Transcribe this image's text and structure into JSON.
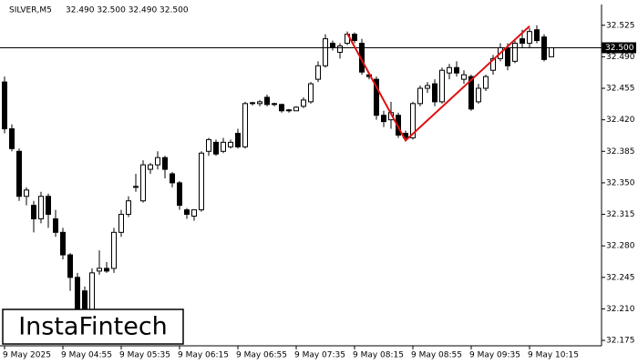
{
  "chart_data": {
    "type": "candlestick",
    "symbol": "SILVER,M5",
    "ohlc_text": "32.490 32.500 32.490 32.500",
    "watermark": "InstaFintech",
    "up_color": "#ffffff",
    "down_color": "#000000",
    "categories": [
      "9 May 2025",
      null,
      null,
      null,
      null,
      null,
      null,
      null,
      "9 May 04:55",
      null,
      null,
      null,
      null,
      null,
      null,
      null,
      "9 May 05:35",
      null,
      null,
      null,
      null,
      null,
      null,
      null,
      "9 May 06:15",
      null,
      null,
      null,
      null,
      null,
      null,
      null,
      "9 May 06:55",
      null,
      null,
      null,
      null,
      null,
      null,
      null,
      "9 May 07:35",
      null,
      null,
      null,
      null,
      null,
      null,
      null,
      "9 May 08:15",
      null,
      null,
      null,
      null,
      null,
      null,
      null,
      "9 May 08:55",
      null,
      null,
      null,
      null,
      null,
      null,
      null,
      "9 May 09:35",
      null,
      null,
      null,
      null,
      null,
      null,
      null,
      "9 May 10:15",
      null,
      null,
      null
    ],
    "open": [
      32.462,
      32.41,
      32.385,
      32.335,
      32.325,
      32.31,
      32.335,
      32.31,
      32.295,
      32.27,
      32.245,
      32.23,
      32.205,
      32.252,
      32.255,
      32.255,
      32.295,
      32.315,
      32.345,
      32.33,
      32.365,
      32.37,
      32.378,
      32.36,
      32.35,
      32.32,
      32.313,
      32.32,
      32.385,
      32.395,
      32.385,
      32.39,
      32.405,
      32.39,
      32.438,
      32.438,
      32.445,
      32.437,
      32.437,
      32.43,
      32.43,
      32.435,
      32.44,
      32.465,
      32.48,
      32.505,
      32.495,
      32.505,
      32.515,
      32.505,
      32.47,
      32.465,
      32.425,
      32.42,
      32.425,
      32.405,
      32.4,
      32.438,
      32.455,
      32.46,
      32.44,
      32.472,
      32.478,
      32.465,
      32.468,
      32.44,
      32.455,
      32.475,
      32.488,
      32.5,
      32.485,
      32.51,
      32.505,
      32.52,
      32.512,
      32.49
    ],
    "high": [
      32.468,
      32.415,
      32.388,
      32.345,
      32.33,
      32.34,
      32.338,
      32.32,
      32.3,
      32.272,
      32.25,
      32.235,
      32.255,
      32.275,
      32.262,
      32.3,
      32.32,
      32.335,
      32.36,
      32.375,
      32.372,
      32.385,
      32.38,
      32.362,
      32.352,
      32.322,
      32.32,
      32.385,
      32.4,
      32.398,
      32.4,
      32.398,
      32.41,
      32.44,
      32.44,
      32.442,
      32.448,
      32.439,
      32.438,
      32.432,
      32.435,
      32.445,
      32.462,
      32.485,
      32.515,
      32.508,
      32.505,
      32.518,
      32.517,
      32.51,
      32.472,
      32.468,
      32.43,
      32.44,
      32.428,
      32.408,
      32.44,
      32.458,
      32.462,
      32.465,
      32.478,
      32.482,
      32.485,
      32.475,
      32.47,
      32.46,
      32.47,
      32.492,
      32.505,
      32.505,
      32.508,
      32.52,
      32.522,
      32.525,
      32.515,
      32.5
    ],
    "low": [
      32.405,
      32.385,
      32.33,
      32.325,
      32.295,
      32.305,
      32.3,
      32.29,
      32.265,
      32.23,
      32.195,
      32.18,
      32.2,
      32.248,
      32.25,
      32.25,
      32.29,
      32.312,
      32.34,
      32.328,
      32.36,
      32.365,
      32.355,
      32.345,
      32.32,
      32.31,
      32.308,
      32.318,
      32.38,
      32.38,
      32.383,
      32.388,
      32.388,
      32.388,
      32.436,
      32.435,
      32.435,
      32.435,
      32.428,
      32.428,
      32.43,
      32.433,
      32.438,
      32.462,
      32.478,
      32.497,
      32.488,
      32.503,
      32.505,
      32.47,
      32.465,
      32.42,
      32.412,
      32.41,
      32.4,
      32.397,
      32.398,
      32.435,
      32.45,
      32.435,
      32.438,
      32.465,
      32.468,
      32.46,
      32.43,
      32.438,
      32.452,
      32.47,
      32.485,
      32.475,
      32.483,
      32.5,
      32.5,
      32.505,
      32.485,
      32.49
    ],
    "close": [
      32.41,
      32.388,
      32.335,
      32.342,
      32.31,
      32.335,
      32.315,
      32.295,
      32.27,
      32.245,
      32.205,
      32.2,
      32.25,
      32.255,
      32.252,
      32.295,
      32.315,
      32.33,
      32.346,
      32.37,
      32.37,
      32.378,
      32.365,
      32.35,
      32.325,
      32.315,
      32.32,
      32.383,
      32.398,
      32.382,
      32.395,
      32.395,
      32.39,
      32.438,
      32.439,
      32.44,
      32.437,
      32.438,
      32.43,
      32.431,
      32.434,
      32.442,
      32.46,
      32.48,
      32.51,
      32.5,
      32.502,
      32.515,
      32.508,
      32.473,
      32.468,
      32.425,
      32.418,
      32.428,
      32.403,
      32.4,
      32.438,
      32.455,
      32.458,
      32.44,
      32.475,
      32.478,
      32.472,
      32.47,
      32.432,
      32.455,
      32.468,
      32.488,
      32.5,
      32.48,
      32.505,
      32.505,
      32.518,
      32.508,
      32.487,
      32.5
    ],
    "pattern": {
      "color": "#e01010",
      "indices": [
        47,
        55,
        72
      ],
      "values": [
        32.516,
        32.397,
        32.524
      ]
    },
    "current_price": {
      "value": 32.5,
      "label": "32.500"
    },
    "ylim": [
      32.169,
      32.548
    ],
    "yticks": [
      32.525,
      {
        "value": 32.49,
        "label": "32.490"
      },
      32.455,
      {
        "value": 32.42,
        "label": "32.420"
      },
      32.385,
      {
        "value": 32.35,
        "label": "32.350"
      },
      32.315,
      {
        "value": 32.28,
        "label": "32.280"
      },
      32.245,
      {
        "value": 32.21,
        "label": "32.210"
      },
      32.175
    ]
  }
}
